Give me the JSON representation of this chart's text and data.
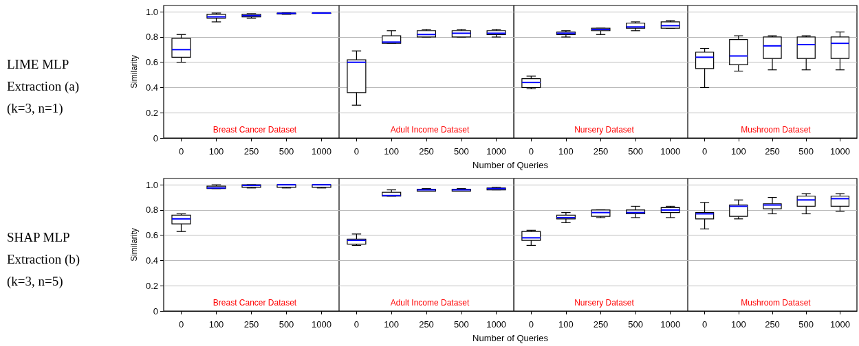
{
  "chart_data": [
    {
      "type": "box",
      "title": "Breast Cancer Dataset",
      "ylabel": "Similarity",
      "annotations": [
        "LIME MLP Extraction (a) (k=3, n=1)"
      ],
      "categories": [
        "0",
        "100",
        "250",
        "500",
        "1000"
      ],
      "ylim": [
        0,
        1.05
      ],
      "yticks": [
        0,
        0.2,
        0.4,
        0.6,
        0.8,
        {
          "value": 1,
          "label": "1.0"
        }
      ],
      "grid": "y",
      "series": [
        {
          "color": "#000000",
          "boxes": [
            {
              "low": 0.6,
              "q1": 0.64,
              "median": 0.7,
              "q3": 0.79,
              "high": 0.82
            },
            {
              "low": 0.92,
              "q1": 0.95,
              "median": 0.96,
              "q3": 0.98,
              "high": 0.99
            },
            {
              "low": 0.95,
              "q1": 0.96,
              "median": 0.97,
              "q3": 0.98,
              "high": 0.985
            },
            {
              "low": 0.98,
              "q1": 0.983,
              "median": 0.988,
              "q3": 0.99,
              "high": 0.992
            },
            {
              "low": 0.99,
              "q1": 0.99,
              "median": 0.99,
              "q3": 0.99,
              "high": 0.99
            }
          ]
        }
      ]
    },
    {
      "type": "box",
      "title": "Adult Income Dataset",
      "xlabel": "Number of Queries",
      "categories": [
        "0",
        "100",
        "250",
        "500",
        "1000"
      ],
      "ylim": [
        0,
        1.05
      ],
      "yticks": [
        0,
        0.2,
        0.4,
        0.6,
        0.8,
        1
      ],
      "grid": "y",
      "tick_labels": "x",
      "series": [
        {
          "color": "#000000",
          "boxes": [
            {
              "low": 0.26,
              "q1": 0.36,
              "median": 0.6,
              "q3": 0.62,
              "high": 0.69
            },
            {
              "low": 0.75,
              "q1": 0.75,
              "median": 0.76,
              "q3": 0.81,
              "high": 0.85
            },
            {
              "low": 0.8,
              "q1": 0.8,
              "median": 0.82,
              "q3": 0.85,
              "high": 0.86
            },
            {
              "low": 0.8,
              "q1": 0.8,
              "median": 0.83,
              "q3": 0.85,
              "high": 0.86
            },
            {
              "low": 0.8,
              "q1": 0.82,
              "median": 0.83,
              "q3": 0.85,
              "high": 0.86
            }
          ]
        }
      ]
    },
    {
      "type": "box",
      "title": "Nursery Dataset",
      "categories": [
        "0",
        "100",
        "250",
        "500",
        "1000"
      ],
      "ylim": [
        0,
        1.05
      ],
      "yticks": [
        0,
        0.2,
        0.4,
        0.6,
        0.8,
        1
      ],
      "grid": "y",
      "tick_labels": "x",
      "series": [
        {
          "color": "#000000",
          "boxes": [
            {
              "low": 0.39,
              "q1": 0.4,
              "median": 0.44,
              "q3": 0.47,
              "high": 0.49
            },
            {
              "low": 0.8,
              "q1": 0.82,
              "median": 0.83,
              "q3": 0.84,
              "high": 0.85
            },
            {
              "low": 0.82,
              "q1": 0.85,
              "median": 0.86,
              "q3": 0.87,
              "high": 0.87
            },
            {
              "low": 0.85,
              "q1": 0.87,
              "median": 0.88,
              "q3": 0.91,
              "high": 0.92
            },
            {
              "low": 0.87,
              "q1": 0.87,
              "median": 0.89,
              "q3": 0.92,
              "high": 0.93
            }
          ]
        }
      ]
    },
    {
      "type": "box",
      "title": "Mushroom Dataset",
      "categories": [
        "0",
        "100",
        "250",
        "500",
        "1000"
      ],
      "ylim": [
        0,
        1.05
      ],
      "yticks": [
        0,
        0.2,
        0.4,
        0.6,
        0.8,
        1
      ],
      "grid": "y",
      "tick_labels": "x",
      "series": [
        {
          "color": "#000000",
          "boxes": [
            {
              "low": 0.4,
              "q1": 0.55,
              "median": 0.64,
              "q3": 0.68,
              "high": 0.71
            },
            {
              "low": 0.53,
              "q1": 0.58,
              "median": 0.65,
              "q3": 0.78,
              "high": 0.81
            },
            {
              "low": 0.54,
              "q1": 0.63,
              "median": 0.73,
              "q3": 0.8,
              "high": 0.81
            },
            {
              "low": 0.54,
              "q1": 0.63,
              "median": 0.74,
              "q3": 0.8,
              "high": 0.81
            },
            {
              "low": 0.54,
              "q1": 0.63,
              "median": 0.75,
              "q3": 0.8,
              "high": 0.84
            }
          ]
        }
      ]
    },
    {
      "type": "box",
      "title": "Breast Cancer Dataset",
      "ylabel": "Similarity",
      "annotations": [
        "SHAP MLP Extraction (b) (k=3, n=5)"
      ],
      "categories": [
        "0",
        "100",
        "250",
        "500",
        "1000"
      ],
      "ylim": [
        0,
        1.05
      ],
      "yticks": [
        0,
        0.2,
        0.4,
        0.6,
        0.8,
        {
          "value": 1,
          "label": "1.0"
        }
      ],
      "grid": "y",
      "series": [
        {
          "color": "#000000",
          "boxes": [
            {
              "low": 0.63,
              "q1": 0.69,
              "median": 0.73,
              "q3": 0.76,
              "high": 0.77
            },
            {
              "low": 0.97,
              "q1": 0.97,
              "median": 0.975,
              "q3": 0.99,
              "high": 1.0
            },
            {
              "low": 0.975,
              "q1": 0.98,
              "median": 0.995,
              "q3": 1.0,
              "high": 1.0
            },
            {
              "low": 0.975,
              "q1": 0.98,
              "median": 1.0,
              "q3": 1.0,
              "high": 1.0
            },
            {
              "low": 0.975,
              "q1": 0.98,
              "median": 1.0,
              "q3": 1.0,
              "high": 1.0
            }
          ]
        }
      ]
    },
    {
      "type": "box",
      "title": "Adult Income Dataset",
      "xlabel": "Number of Queries",
      "categories": [
        "0",
        "100",
        "250",
        "500",
        "1000"
      ],
      "ylim": [
        0,
        1.05
      ],
      "yticks": [
        0,
        0.2,
        0.4,
        0.6,
        0.8,
        1
      ],
      "grid": "y",
      "tick_labels": "x",
      "series": [
        {
          "color": "#000000",
          "boxes": [
            {
              "low": 0.52,
              "q1": 0.53,
              "median": 0.56,
              "q3": 0.57,
              "high": 0.61
            },
            {
              "low": 0.91,
              "q1": 0.91,
              "median": 0.915,
              "q3": 0.94,
              "high": 0.96
            },
            {
              "low": 0.95,
              "q1": 0.95,
              "median": 0.96,
              "q3": 0.965,
              "high": 0.97
            },
            {
              "low": 0.95,
              "q1": 0.95,
              "median": 0.96,
              "q3": 0.965,
              "high": 0.97
            },
            {
              "low": 0.96,
              "q1": 0.96,
              "median": 0.97,
              "q3": 0.975,
              "high": 0.98
            }
          ]
        }
      ]
    },
    {
      "type": "box",
      "title": "Nursery Dataset",
      "categories": [
        "0",
        "100",
        "250",
        "500",
        "1000"
      ],
      "ylim": [
        0,
        1.05
      ],
      "yticks": [
        0,
        0.2,
        0.4,
        0.6,
        0.8,
        1
      ],
      "grid": "y",
      "tick_labels": "x",
      "series": [
        {
          "color": "#000000",
          "boxes": [
            {
              "low": 0.52,
              "q1": 0.56,
              "median": 0.58,
              "q3": 0.63,
              "high": 0.64
            },
            {
              "low": 0.7,
              "q1": 0.73,
              "median": 0.74,
              "q3": 0.76,
              "high": 0.78
            },
            {
              "low": 0.74,
              "q1": 0.75,
              "median": 0.78,
              "q3": 0.8,
              "high": 0.8
            },
            {
              "low": 0.74,
              "q1": 0.77,
              "median": 0.78,
              "q3": 0.8,
              "high": 0.83
            },
            {
              "low": 0.74,
              "q1": 0.78,
              "median": 0.8,
              "q3": 0.82,
              "high": 0.83
            }
          ]
        }
      ]
    },
    {
      "type": "box",
      "title": "Mushroom Dataset",
      "categories": [
        "0",
        "100",
        "250",
        "500",
        "1000"
      ],
      "ylim": [
        0,
        1.05
      ],
      "yticks": [
        0,
        0.2,
        0.4,
        0.6,
        0.8,
        1
      ],
      "grid": "y",
      "tick_labels": "x",
      "series": [
        {
          "color": "#000000",
          "boxes": [
            {
              "low": 0.65,
              "q1": 0.73,
              "median": 0.77,
              "q3": 0.78,
              "high": 0.86
            },
            {
              "low": 0.73,
              "q1": 0.75,
              "median": 0.83,
              "q3": 0.84,
              "high": 0.88
            },
            {
              "low": 0.77,
              "q1": 0.81,
              "median": 0.84,
              "q3": 0.85,
              "high": 0.9
            },
            {
              "low": 0.77,
              "q1": 0.83,
              "median": 0.88,
              "q3": 0.91,
              "high": 0.93
            },
            {
              "low": 0.79,
              "q1": 0.83,
              "median": 0.89,
              "q3": 0.91,
              "high": 0.93
            }
          ]
        }
      ]
    }
  ]
}
